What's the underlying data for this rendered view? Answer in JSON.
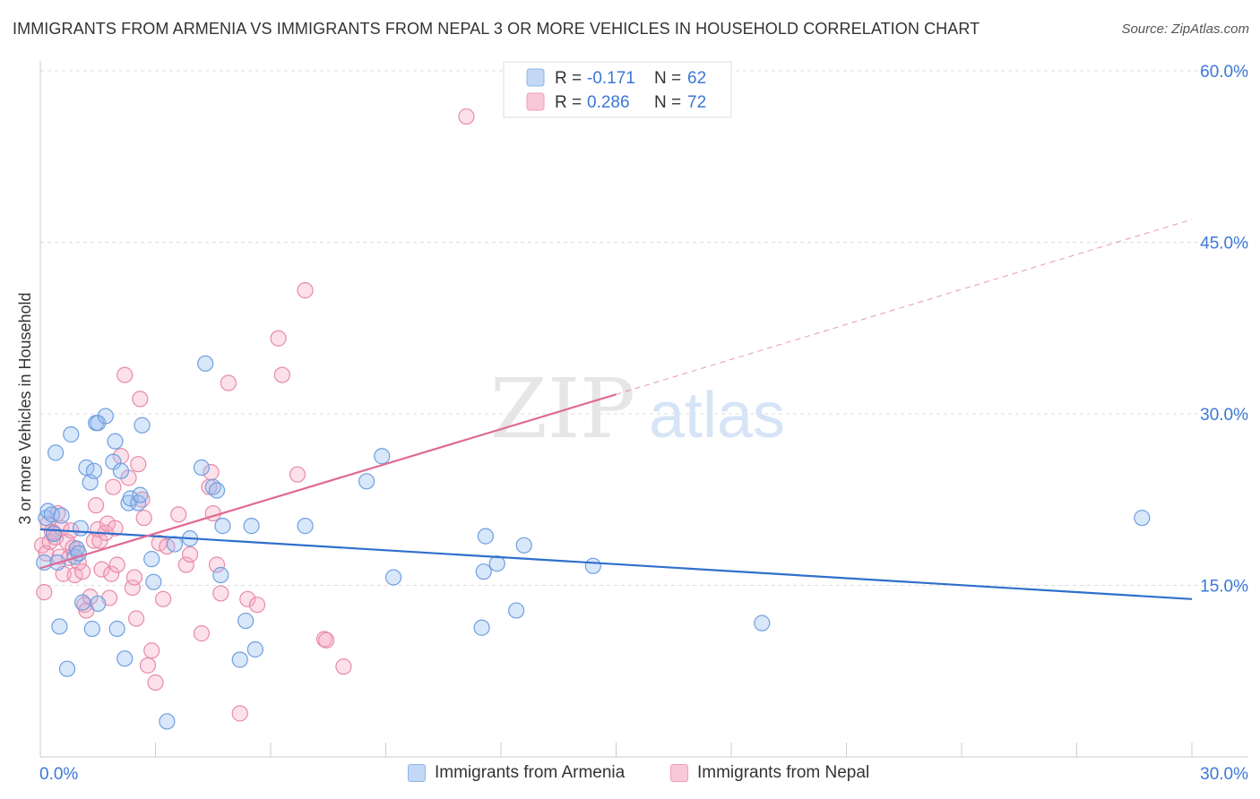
{
  "title": "IMMIGRANTS FROM ARMENIA VS IMMIGRANTS FROM NEPAL 3 OR MORE VEHICLES IN HOUSEHOLD CORRELATION CHART",
  "source": "Source: ZipAtlas.com",
  "watermark": {
    "zip": "ZIP",
    "atlas": "atlas"
  },
  "colors": {
    "armenia_fill": "rgba(147,186,240,0.35)",
    "armenia_stroke": "#6f9fe0",
    "armenia_line": "#2f6fcc",
    "nepal_fill": "rgba(245,170,195,0.35)",
    "nepal_stroke": "#e88aa8",
    "nepal_line": "#e06a93",
    "axis_label": "#3b78d8",
    "grid": "#dddddd"
  },
  "legend_top": [
    {
      "r_label": "R = ",
      "r_value": "-0.171",
      "n_label": "N = ",
      "n_value": "62"
    },
    {
      "r_label": "R = ",
      "r_value": "0.286",
      "n_label": "N = ",
      "n_value": "72"
    }
  ],
  "chart_data": {
    "type": "scatter",
    "title": "IMMIGRANTS FROM ARMENIA VS IMMIGRANTS FROM NEPAL 3 OR MORE VEHICLES IN HOUSEHOLD CORRELATION CHART",
    "xlabel": "",
    "ylabel": "3 or more Vehicles in Household",
    "xlim": [
      0,
      30
    ],
    "ylim": [
      0,
      60
    ],
    "x_tick_labels": [
      "0.0%",
      "30.0%"
    ],
    "y_ticks": [
      15,
      30,
      45,
      60
    ],
    "y_tick_labels": [
      "15.0%",
      "30.0%",
      "45.0%",
      "60.0%"
    ],
    "grid": true,
    "legend": "top-center and bottom",
    "series": [
      {
        "name": "Immigrants from Armenia",
        "R": -0.171,
        "N": 62,
        "trend": {
          "x": [
            0,
            30
          ],
          "y": [
            19.9,
            13.8
          ],
          "dashed_from_x": null
        },
        "points": [
          [
            0.1,
            17.0
          ],
          [
            0.15,
            20.9
          ],
          [
            0.2,
            21.5
          ],
          [
            0.3,
            21.2
          ],
          [
            0.35,
            19.5
          ],
          [
            0.4,
            26.6
          ],
          [
            0.45,
            17.0
          ],
          [
            0.5,
            11.4
          ],
          [
            0.55,
            21.1
          ],
          [
            0.7,
            7.7
          ],
          [
            0.8,
            28.2
          ],
          [
            0.9,
            17.5
          ],
          [
            0.95,
            18.2
          ],
          [
            1.0,
            17.8
          ],
          [
            1.05,
            20.0
          ],
          [
            1.1,
            13.5
          ],
          [
            1.2,
            25.3
          ],
          [
            1.3,
            24.0
          ],
          [
            1.35,
            11.2
          ],
          [
            1.4,
            25.0
          ],
          [
            1.45,
            29.2
          ],
          [
            1.5,
            29.2
          ],
          [
            1.5,
            13.4
          ],
          [
            1.7,
            29.8
          ],
          [
            1.9,
            25.8
          ],
          [
            1.95,
            27.6
          ],
          [
            2.0,
            11.2
          ],
          [
            2.1,
            25.0
          ],
          [
            2.2,
            8.6
          ],
          [
            2.3,
            22.2
          ],
          [
            2.35,
            22.6
          ],
          [
            2.55,
            22.2
          ],
          [
            2.6,
            22.9
          ],
          [
            2.65,
            29.0
          ],
          [
            2.9,
            17.3
          ],
          [
            2.95,
            15.3
          ],
          [
            3.3,
            3.1
          ],
          [
            3.5,
            18.6
          ],
          [
            3.9,
            19.1
          ],
          [
            4.2,
            25.3
          ],
          [
            4.3,
            34.4
          ],
          [
            4.5,
            23.6
          ],
          [
            4.6,
            23.3
          ],
          [
            4.7,
            15.9
          ],
          [
            4.75,
            20.2
          ],
          [
            5.2,
            8.5
          ],
          [
            5.35,
            11.9
          ],
          [
            5.5,
            20.2
          ],
          [
            5.6,
            9.4
          ],
          [
            6.9,
            20.2
          ],
          [
            8.5,
            24.1
          ],
          [
            8.9,
            26.3
          ],
          [
            9.2,
            15.7
          ],
          [
            11.5,
            11.3
          ],
          [
            11.55,
            16.2
          ],
          [
            11.6,
            19.3
          ],
          [
            11.9,
            16.9
          ],
          [
            12.4,
            12.8
          ],
          [
            12.6,
            18.5
          ],
          [
            14.4,
            16.7
          ],
          [
            18.8,
            11.7
          ],
          [
            28.7,
            20.9
          ]
        ]
      },
      {
        "name": "Immigrants from Nepal",
        "R": 0.286,
        "N": 72,
        "trend": {
          "x": [
            0,
            15,
            30
          ],
          "y": [
            16.5,
            31.7,
            47.0
          ],
          "dashed_from_x": 15
        },
        "points": [
          [
            0.05,
            18.5
          ],
          [
            0.1,
            14.4
          ],
          [
            0.15,
            17.8
          ],
          [
            0.2,
            20.4
          ],
          [
            0.25,
            18.8
          ],
          [
            0.3,
            19.7
          ],
          [
            0.35,
            19.6
          ],
          [
            0.4,
            19.2
          ],
          [
            0.45,
            21.3
          ],
          [
            0.5,
            17.5
          ],
          [
            0.55,
            20.0
          ],
          [
            0.6,
            16.0
          ],
          [
            0.7,
            18.8
          ],
          [
            0.75,
            17.4
          ],
          [
            0.8,
            19.8
          ],
          [
            0.85,
            18.3
          ],
          [
            0.9,
            15.9
          ],
          [
            0.95,
            18.2
          ],
          [
            1.0,
            17.0
          ],
          [
            1.1,
            16.2
          ],
          [
            1.15,
            13.3
          ],
          [
            1.2,
            12.8
          ],
          [
            1.3,
            14.0
          ],
          [
            1.4,
            18.9
          ],
          [
            1.45,
            22.0
          ],
          [
            1.5,
            19.9
          ],
          [
            1.55,
            18.9
          ],
          [
            1.6,
            16.4
          ],
          [
            1.7,
            19.6
          ],
          [
            1.75,
            20.4
          ],
          [
            1.8,
            13.9
          ],
          [
            1.85,
            16.0
          ],
          [
            1.9,
            23.6
          ],
          [
            1.95,
            20.0
          ],
          [
            2.0,
            16.8
          ],
          [
            2.1,
            26.3
          ],
          [
            2.2,
            33.4
          ],
          [
            2.3,
            24.4
          ],
          [
            2.4,
            14.8
          ],
          [
            2.45,
            15.7
          ],
          [
            2.5,
            12.1
          ],
          [
            2.55,
            25.6
          ],
          [
            2.6,
            31.3
          ],
          [
            2.65,
            22.5
          ],
          [
            2.7,
            20.9
          ],
          [
            2.8,
            8.0
          ],
          [
            2.9,
            9.3
          ],
          [
            3.0,
            6.5
          ],
          [
            3.1,
            18.7
          ],
          [
            3.2,
            13.8
          ],
          [
            3.3,
            18.4
          ],
          [
            3.6,
            21.2
          ],
          [
            3.8,
            16.8
          ],
          [
            3.9,
            17.7
          ],
          [
            4.2,
            10.8
          ],
          [
            4.4,
            23.6
          ],
          [
            4.45,
            24.9
          ],
          [
            4.5,
            21.3
          ],
          [
            4.6,
            16.8
          ],
          [
            4.7,
            14.3
          ],
          [
            4.9,
            32.7
          ],
          [
            5.2,
            3.8
          ],
          [
            5.4,
            13.8
          ],
          [
            5.65,
            13.3
          ],
          [
            6.2,
            36.6
          ],
          [
            6.3,
            33.4
          ],
          [
            6.7,
            24.7
          ],
          [
            6.9,
            40.8
          ],
          [
            7.4,
            10.3
          ],
          [
            7.45,
            10.2
          ],
          [
            7.9,
            7.9
          ],
          [
            11.1,
            56.0
          ]
        ]
      }
    ]
  }
}
